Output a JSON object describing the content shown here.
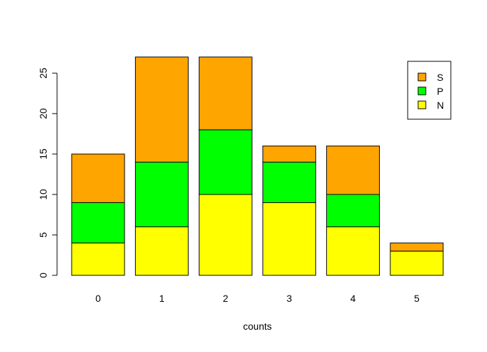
{
  "chart_data": {
    "type": "bar",
    "stacked": true,
    "title": "",
    "xlabel": "counts",
    "ylabel": "",
    "ylim": [
      0,
      28
    ],
    "yticks": [
      0,
      5,
      10,
      15,
      20,
      25
    ],
    "categories": [
      "0",
      "1",
      "2",
      "3",
      "4",
      "5"
    ],
    "series": [
      {
        "name": "N",
        "color": "#ffff00",
        "values": [
          4,
          6,
          10,
          9,
          6,
          3
        ]
      },
      {
        "name": "P",
        "color": "#00ff00",
        "values": [
          5,
          8,
          8,
          5,
          4,
          0
        ]
      },
      {
        "name": "S",
        "color": "#ffa500",
        "values": [
          6,
          13,
          9,
          2,
          6,
          1
        ]
      }
    ],
    "legend": {
      "placement": "top-right",
      "order": [
        "S",
        "P",
        "N"
      ]
    },
    "grid": false
  }
}
